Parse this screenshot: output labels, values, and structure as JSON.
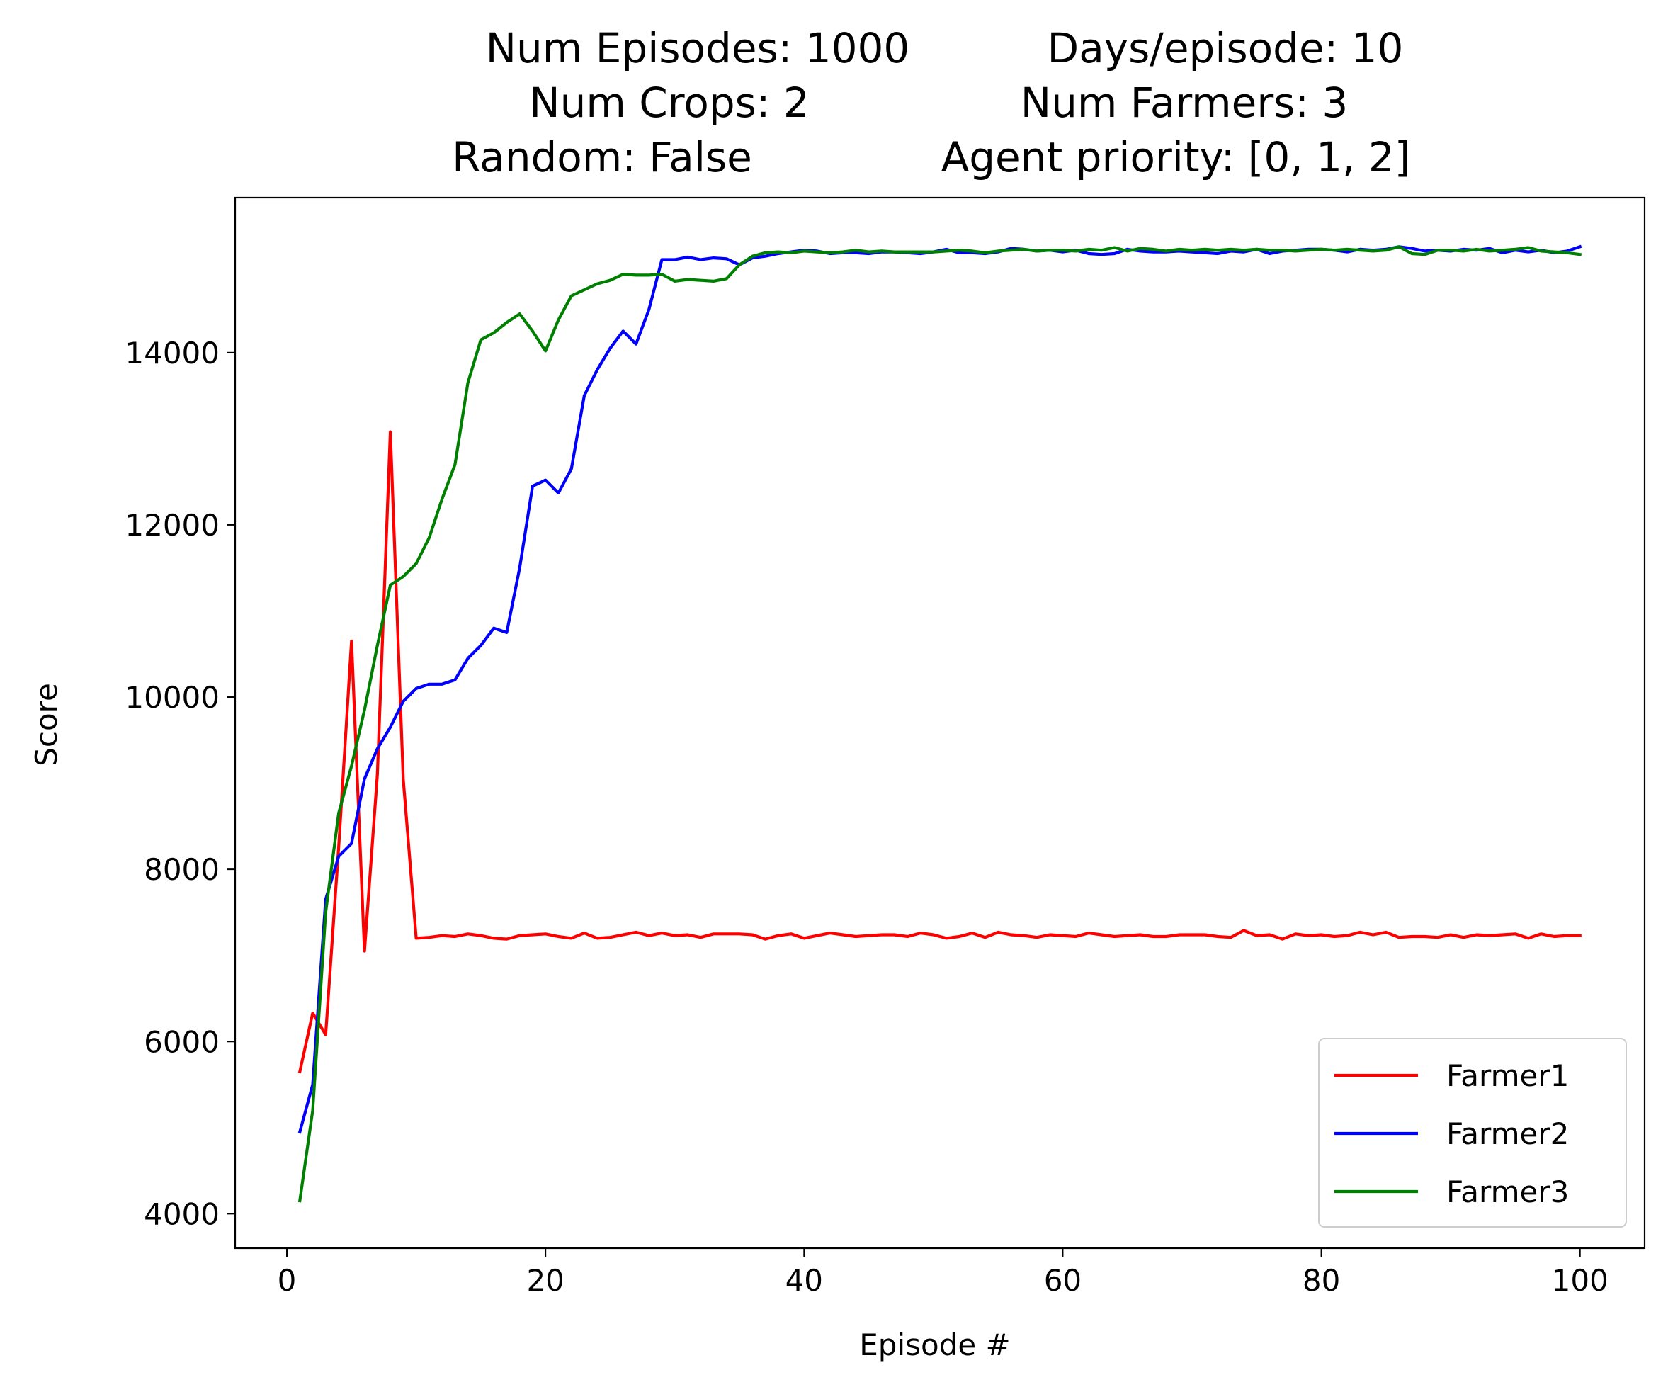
{
  "chart_data": {
    "type": "line",
    "title_lines": [
      [
        "Num Episodes: 1000",
        "Days/episode: 10"
      ],
      [
        "Num Crops: 2",
        "Num Farmers: 3"
      ],
      [
        "Random: False",
        "Agent priority: [0, 1, 2]"
      ]
    ],
    "xlabel": "Episode #",
    "ylabel": "Score",
    "xlim": [
      -4,
      105
    ],
    "ylim": [
      3600,
      15800
    ],
    "xticks": [
      0,
      20,
      40,
      60,
      80,
      100
    ],
    "yticks": [
      4000,
      6000,
      8000,
      10000,
      12000,
      14000
    ],
    "grid": false,
    "legend_position": "lower right",
    "series": [
      {
        "name": "Farmer1",
        "color": "#ff0000",
        "x": [
          1,
          2,
          3,
          4,
          5,
          6,
          7,
          8,
          9,
          10,
          11,
          12,
          13,
          14,
          15,
          16,
          17,
          18,
          19,
          20,
          21,
          22,
          23,
          24,
          25,
          26,
          27,
          28,
          29,
          30,
          31,
          32,
          33,
          34,
          35,
          36,
          37,
          38,
          39,
          40,
          41,
          42,
          43,
          44,
          45,
          46,
          47,
          48,
          49,
          50,
          51,
          52,
          53,
          54,
          55,
          56,
          57,
          58,
          59,
          60,
          61,
          62,
          63,
          64,
          65,
          66,
          67,
          68,
          69,
          70,
          71,
          72,
          73,
          74,
          75,
          76,
          77,
          78,
          79,
          80,
          81,
          82,
          83,
          84,
          85,
          86,
          87,
          88,
          89,
          90,
          91,
          92,
          93,
          94,
          95,
          96,
          97,
          98,
          99,
          100
        ],
        "y": [
          5650,
          6330,
          6080,
          8250,
          10650,
          7050,
          9100,
          13080,
          9050,
          7200,
          7210,
          7230,
          7220,
          7250,
          7230,
          7200,
          7190,
          7230,
          7240,
          7250,
          7220,
          7200,
          7260,
          7200,
          7210,
          7240,
          7270,
          7230,
          7260,
          7230,
          7240,
          7210,
          7250,
          7250,
          7250,
          7240,
          7190,
          7230,
          7250,
          7200,
          7230,
          7260,
          7240,
          7220,
          7230,
          7240,
          7240,
          7220,
          7260,
          7240,
          7200,
          7220,
          7260,
          7210,
          7270,
          7240,
          7230,
          7210,
          7240,
          7230,
          7220,
          7260,
          7240,
          7220,
          7230,
          7240,
          7220,
          7220,
          7240,
          7240,
          7240,
          7220,
          7210,
          7290,
          7230,
          7240,
          7190,
          7250,
          7230,
          7240,
          7220,
          7230,
          7270,
          7240,
          7270,
          7210,
          7220,
          7220,
          7210,
          7240,
          7210,
          7240,
          7230,
          7240,
          7250,
          7200,
          7250,
          7220,
          7230,
          7230
        ]
      },
      {
        "name": "Farmer2",
        "color": "#0000ff",
        "x": [
          1,
          2,
          3,
          4,
          5,
          6,
          7,
          8,
          9,
          10,
          11,
          12,
          13,
          14,
          15,
          16,
          17,
          18,
          19,
          20,
          21,
          22,
          23,
          24,
          25,
          26,
          27,
          28,
          29,
          30,
          31,
          32,
          33,
          34,
          35,
          36,
          37,
          38,
          39,
          40,
          41,
          42,
          43,
          44,
          45,
          46,
          47,
          48,
          49,
          50,
          51,
          52,
          53,
          54,
          55,
          56,
          57,
          58,
          59,
          60,
          61,
          62,
          63,
          64,
          65,
          66,
          67,
          68,
          69,
          70,
          71,
          72,
          73,
          74,
          75,
          76,
          77,
          78,
          79,
          80,
          81,
          82,
          83,
          84,
          85,
          86,
          87,
          88,
          89,
          90,
          91,
          92,
          93,
          94,
          95,
          96,
          97,
          98,
          99,
          100
        ],
        "y": [
          4950,
          5500,
          7650,
          8150,
          8300,
          9050,
          9400,
          9650,
          9950,
          10100,
          10150,
          10150,
          10200,
          10450,
          10600,
          10800,
          10750,
          11500,
          12450,
          12520,
          12370,
          12650,
          13500,
          13800,
          14050,
          14250,
          14100,
          14500,
          15080,
          15080,
          15110,
          15080,
          15100,
          15090,
          15020,
          15100,
          15120,
          15150,
          15170,
          15190,
          15180,
          15150,
          15160,
          15160,
          15150,
          15170,
          15170,
          15160,
          15150,
          15170,
          15200,
          15160,
          15160,
          15150,
          15170,
          15210,
          15200,
          15180,
          15190,
          15170,
          15190,
          15150,
          15140,
          15150,
          15200,
          15180,
          15170,
          15170,
          15180,
          15170,
          15160,
          15150,
          15180,
          15170,
          15200,
          15150,
          15180,
          15190,
          15200,
          15200,
          15190,
          15170,
          15200,
          15190,
          15200,
          15230,
          15210,
          15180,
          15190,
          15180,
          15200,
          15190,
          15210,
          15160,
          15190,
          15170,
          15190,
          15160,
          15180,
          15230
        ]
      },
      {
        "name": "Farmer3",
        "color": "#008000",
        "x": [
          1,
          2,
          3,
          4,
          5,
          6,
          7,
          8,
          9,
          10,
          11,
          12,
          13,
          14,
          15,
          16,
          17,
          18,
          19,
          20,
          21,
          22,
          23,
          24,
          25,
          26,
          27,
          28,
          29,
          30,
          31,
          32,
          33,
          34,
          35,
          36,
          37,
          38,
          39,
          40,
          41,
          42,
          43,
          44,
          45,
          46,
          47,
          48,
          49,
          50,
          51,
          52,
          53,
          54,
          55,
          56,
          57,
          58,
          59,
          60,
          61,
          62,
          63,
          64,
          65,
          66,
          67,
          68,
          69,
          70,
          71,
          72,
          73,
          74,
          75,
          76,
          77,
          78,
          79,
          80,
          81,
          82,
          83,
          84,
          85,
          86,
          87,
          88,
          89,
          90,
          91,
          92,
          93,
          94,
          95,
          96,
          97,
          98,
          99,
          100
        ],
        "y": [
          4150,
          5200,
          7500,
          8650,
          9200,
          9850,
          10600,
          11300,
          11400,
          11550,
          11850,
          12300,
          12700,
          13650,
          14150,
          14230,
          14350,
          14450,
          14250,
          14020,
          14380,
          14660,
          14730,
          14800,
          14840,
          14910,
          14900,
          14900,
          14910,
          14830,
          14850,
          14840,
          14830,
          14860,
          15020,
          15120,
          15160,
          15170,
          15160,
          15180,
          15170,
          15160,
          15170,
          15190,
          15170,
          15180,
          15170,
          15170,
          15170,
          15170,
          15180,
          15190,
          15180,
          15160,
          15180,
          15190,
          15200,
          15180,
          15190,
          15190,
          15180,
          15200,
          15190,
          15220,
          15180,
          15210,
          15200,
          15180,
          15200,
          15190,
          15200,
          15190,
          15200,
          15190,
          15200,
          15190,
          15190,
          15180,
          15190,
          15200,
          15190,
          15200,
          15190,
          15180,
          15190,
          15230,
          15150,
          15140,
          15190,
          15190,
          15180,
          15200,
          15180,
          15190,
          15200,
          15220,
          15180,
          15170,
          15160,
          15140
        ]
      }
    ]
  }
}
